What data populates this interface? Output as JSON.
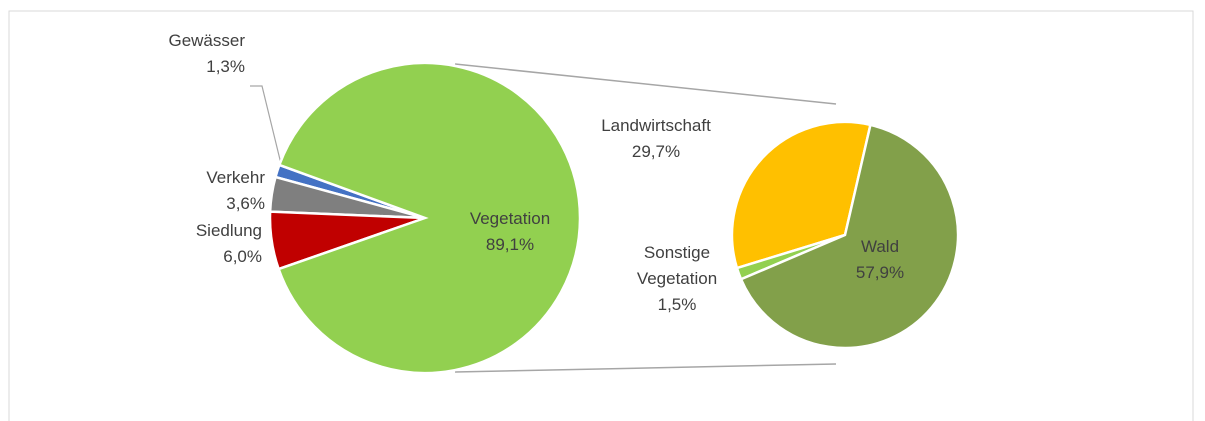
{
  "chart_data": [
    {
      "type": "pie",
      "categories": [
        "Gewässer",
        "Verkehr",
        "Siedlung",
        "Vegetation"
      ],
      "values": [
        1.3,
        3.6,
        6.0,
        89.1
      ],
      "value_labels": [
        "1,3%",
        "3,6%",
        "6,0%",
        "89,1%"
      ],
      "colors": [
        "#4472c4",
        "#7f7f7f",
        "#c00000",
        "#92d050"
      ]
    },
    {
      "type": "pie",
      "categories": [
        "Landwirtschaft",
        "Sonstige Vegetation",
        "Wald"
      ],
      "values": [
        29.7,
        1.5,
        57.9
      ],
      "value_labels": [
        "29,7%",
        "1,5%",
        "57,9%"
      ],
      "colors": [
        "#ffc000",
        "#92d050",
        "#82a04a"
      ]
    }
  ]
}
